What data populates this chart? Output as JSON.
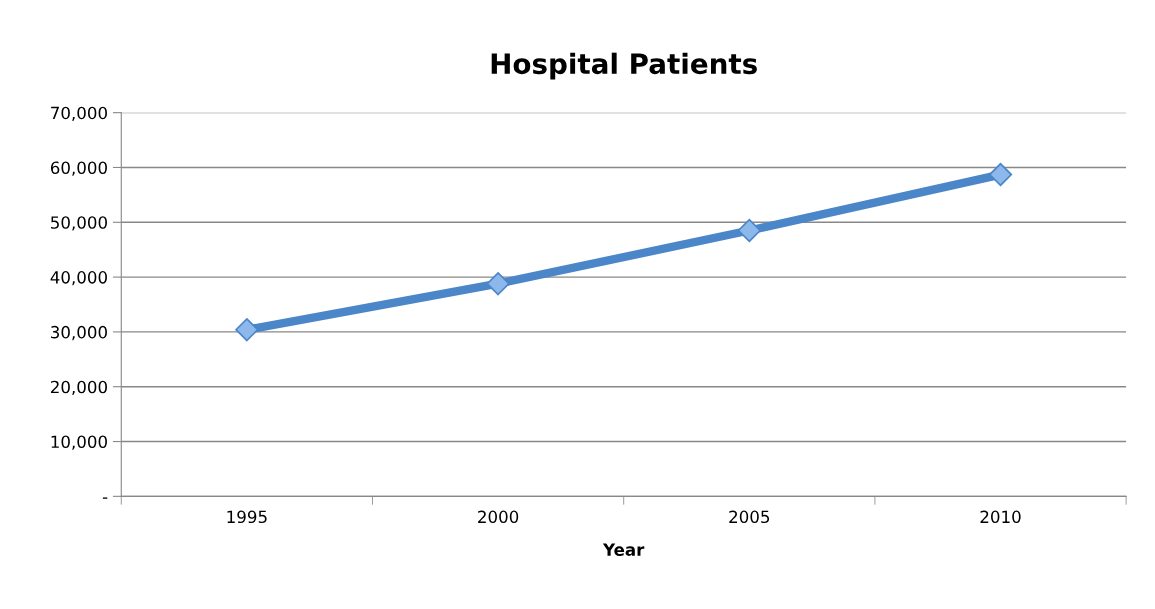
{
  "chart_data": {
    "type": "line",
    "title": "Hospital Patients",
    "xlabel": "Year",
    "categories": [
      "1995",
      "2000",
      "2005",
      "2010"
    ],
    "series": [
      {
        "color": "#4a86c8",
        "values": [
          30400,
          38800,
          48500,
          58700
        ]
      }
    ],
    "ylim": [
      0,
      70000
    ],
    "yticks": [
      {
        "value": 0,
        "label": "-"
      },
      {
        "value": 10000,
        "label": "10,000"
      },
      {
        "value": 20000,
        "label": "20,000"
      },
      {
        "value": 30000,
        "label": "30,000"
      },
      {
        "value": 40000,
        "label": "40,000"
      },
      {
        "value": 50000,
        "label": "50,000"
      },
      {
        "value": 60000,
        "label": "60,000"
      },
      {
        "value": 70000,
        "label": "70,000"
      }
    ],
    "grid": "y",
    "marker": "diamond",
    "line_style": "solid",
    "legend": false
  }
}
